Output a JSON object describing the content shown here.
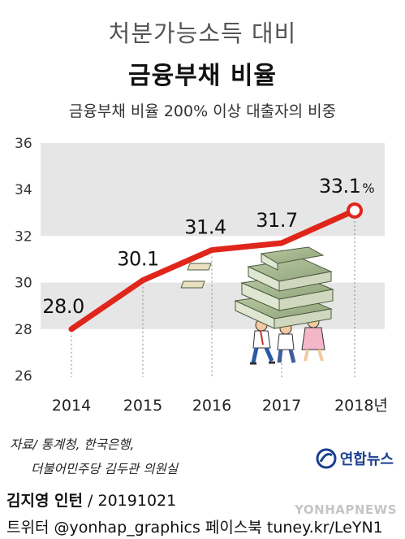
{
  "header": {
    "title_line1": "처분가능소득 대비",
    "title_line2": "금융부채 비율",
    "subtitle": "금융부채 비율 200% 이상 대출자의 비중"
  },
  "chart_data": {
    "type": "line",
    "x": [
      "2014",
      "2015",
      "2016",
      "2017",
      "2018년"
    ],
    "series": [
      {
        "values": [
          28.0,
          30.1,
          31.4,
          31.7,
          33.1
        ]
      }
    ],
    "data_labels": [
      "28.0",
      "30.1",
      "31.4",
      "31.7",
      "33.1"
    ],
    "last_label_unit": "%",
    "y_ticks": [
      "26",
      "28",
      "30",
      "32",
      "34",
      "36"
    ],
    "ylim": [
      26,
      36
    ],
    "grid": "alternating horizontal bands",
    "line_color": "#e0261b",
    "band_color": "#e6e6e6"
  },
  "footer": {
    "source_line1": "자료/ 통계청, 한국은행,",
    "source_line2": "더불어민주당 김두관 의원실",
    "logo_text": "연합뉴스",
    "credit_name": "김지영 인턴",
    "credit_date": " / 20191021",
    "social": "트위터 @yonhap_graphics  페이스북 tuney.kr/LeYN1",
    "watermark": "YONHAPNEWS"
  }
}
